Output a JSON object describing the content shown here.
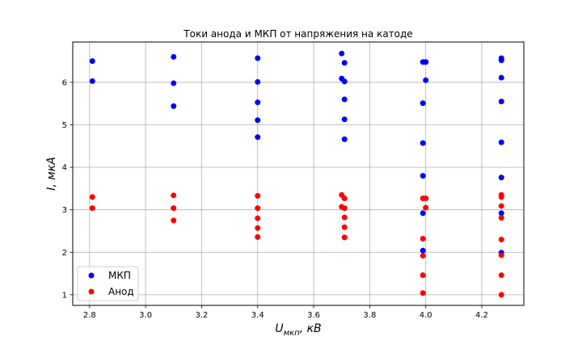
{
  "chart_data": {
    "type": "scatter",
    "title": "Токи анода и МКП от напряжения на катоде",
    "xlabel": "U_мкп, кВ",
    "ylabel": "I, мкА",
    "xlim": [
      2.74,
      4.35
    ],
    "ylim": [
      0.75,
      6.95
    ],
    "xticks": [
      2.8,
      3.0,
      3.2,
      3.4,
      3.6,
      3.8,
      4.0,
      4.2
    ],
    "xtick_labels": [
      "2.8",
      "3.0",
      "3.2",
      "3.4",
      "3.6",
      "3.8",
      "4.0",
      "4.2"
    ],
    "yticks": [
      1,
      2,
      3,
      4,
      5,
      6
    ],
    "ytick_labels": [
      "1",
      "2",
      "3",
      "4",
      "5",
      "6"
    ],
    "grid": true,
    "legend_position": "bottom-left",
    "series": [
      {
        "name": "МКП",
        "color": "#0000ff",
        "points": [
          [
            2.81,
            6.5
          ],
          [
            2.81,
            6.03
          ],
          [
            3.1,
            6.6
          ],
          [
            3.1,
            5.98
          ],
          [
            3.1,
            5.44
          ],
          [
            3.4,
            6.57
          ],
          [
            3.4,
            6.01
          ],
          [
            3.4,
            5.53
          ],
          [
            3.4,
            5.11
          ],
          [
            3.4,
            4.71
          ],
          [
            3.7,
            6.68
          ],
          [
            3.71,
            6.46
          ],
          [
            3.7,
            6.09
          ],
          [
            3.71,
            6.02
          ],
          [
            3.71,
            5.6
          ],
          [
            3.71,
            5.13
          ],
          [
            3.71,
            4.66
          ],
          [
            3.99,
            6.48
          ],
          [
            4.0,
            6.48
          ],
          [
            4.0,
            6.05
          ],
          [
            3.99,
            5.51
          ],
          [
            3.99,
            4.57
          ],
          [
            3.99,
            3.8
          ],
          [
            3.99,
            2.92
          ],
          [
            3.99,
            2.04
          ],
          [
            4.27,
            6.57
          ],
          [
            4.27,
            6.52
          ],
          [
            4.27,
            6.11
          ],
          [
            4.27,
            5.55
          ],
          [
            4.27,
            4.59
          ],
          [
            4.27,
            3.76
          ],
          [
            4.27,
            2.92
          ],
          [
            4.27,
            1.99
          ]
        ]
      },
      {
        "name": "Анод",
        "color": "#ff0000",
        "points": [
          [
            2.81,
            3.3
          ],
          [
            2.81,
            3.04
          ],
          [
            3.1,
            3.34
          ],
          [
            3.1,
            3.04
          ],
          [
            3.1,
            2.75
          ],
          [
            3.4,
            3.33
          ],
          [
            3.4,
            3.04
          ],
          [
            3.4,
            2.8
          ],
          [
            3.4,
            2.57
          ],
          [
            3.4,
            2.36
          ],
          [
            3.7,
            3.35
          ],
          [
            3.71,
            3.27
          ],
          [
            3.7,
            3.07
          ],
          [
            3.71,
            3.04
          ],
          [
            3.71,
            2.82
          ],
          [
            3.71,
            2.59
          ],
          [
            3.71,
            2.35
          ],
          [
            3.99,
            3.27
          ],
          [
            4.0,
            3.27
          ],
          [
            4.0,
            3.05
          ],
          [
            3.99,
            2.32
          ],
          [
            3.99,
            1.92
          ],
          [
            3.99,
            1.46
          ],
          [
            3.99,
            1.04
          ],
          [
            4.27,
            3.35
          ],
          [
            4.27,
            3.3
          ],
          [
            4.27,
            3.09
          ],
          [
            4.27,
            2.81
          ],
          [
            4.27,
            2.3
          ],
          [
            4.27,
            1.93
          ],
          [
            4.27,
            1.46
          ],
          [
            4.27,
            1.0
          ]
        ]
      }
    ]
  }
}
